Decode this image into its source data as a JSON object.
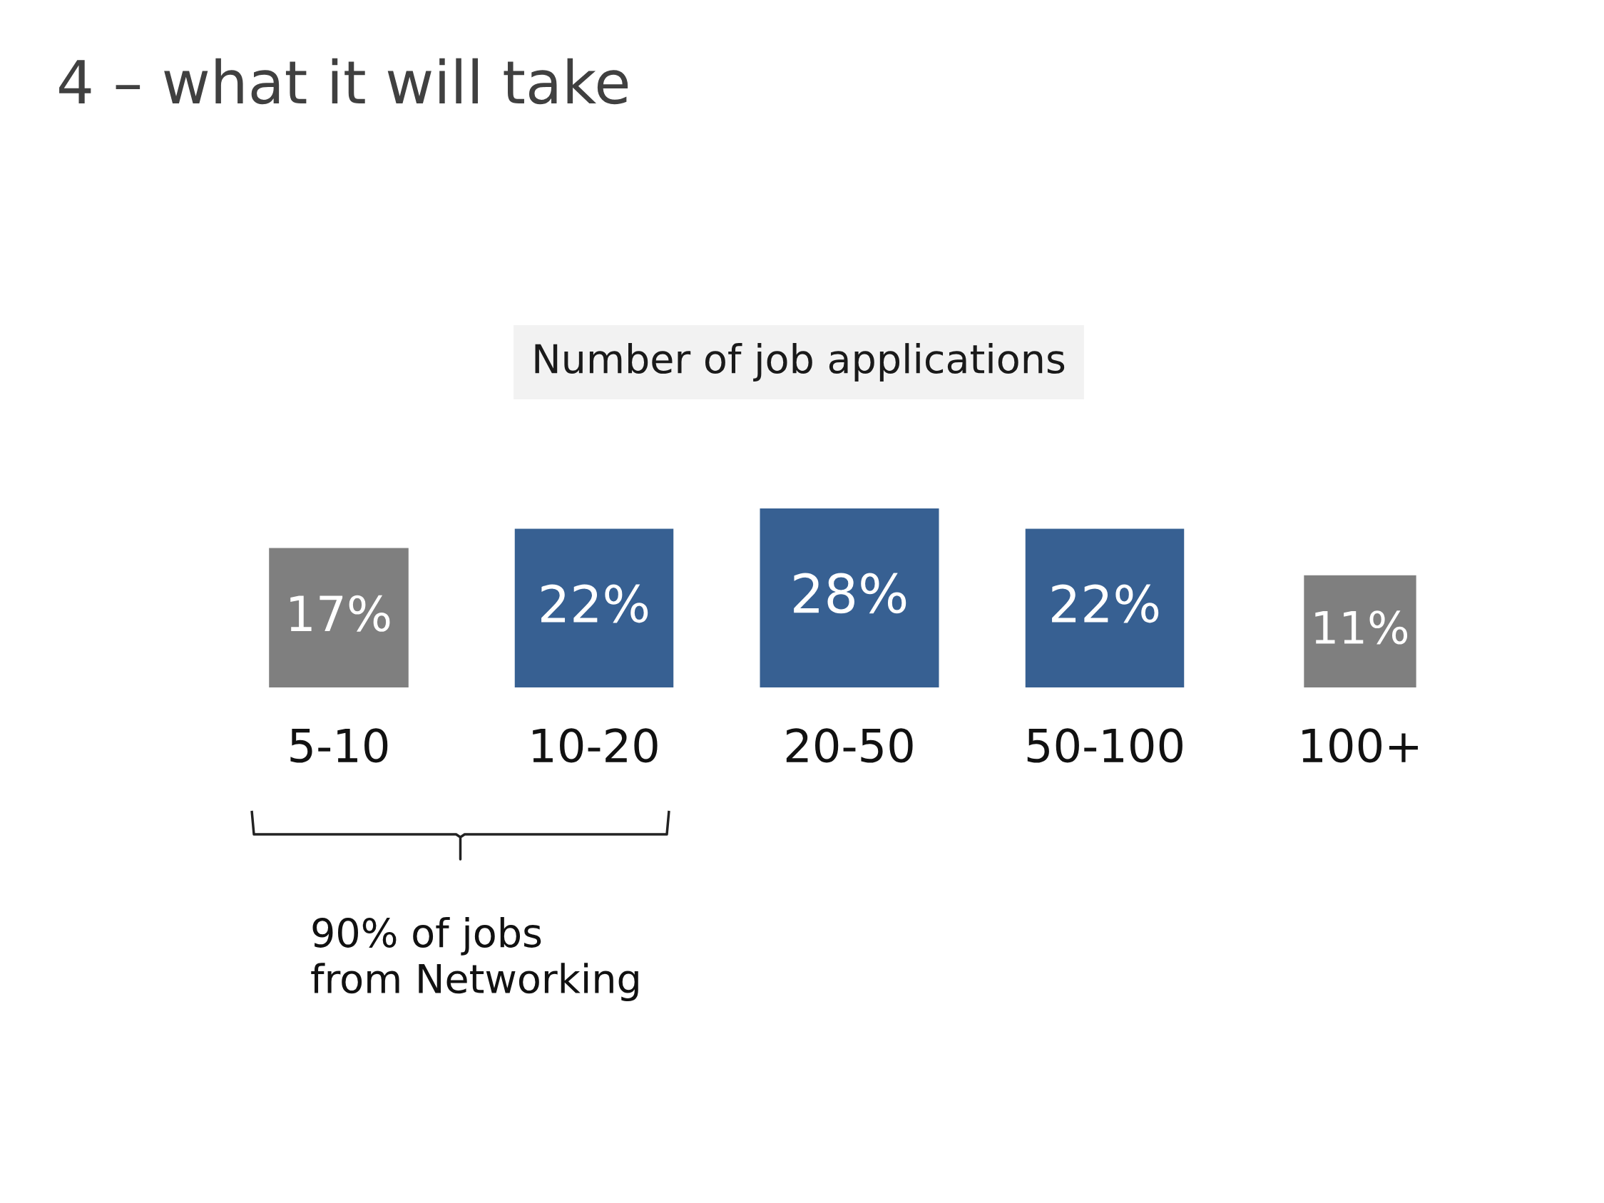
{
  "chart_data": {
    "type": "other",
    "title": "4 – what it will take",
    "subtitle": "Number of job applications",
    "categories": [
      "5-10",
      "10-20",
      "20-50",
      "50-100",
      "100+"
    ],
    "values": [
      17,
      22,
      28,
      22,
      11
    ],
    "value_labels": [
      "17%",
      "22%",
      "28%",
      "22%",
      "11%"
    ],
    "colors": [
      "#7f7f7f",
      "#376092",
      "#376092",
      "#376092",
      "#7f7f7f"
    ],
    "annotations": [
      "90% of jobs\nfrom Networking"
    ]
  }
}
